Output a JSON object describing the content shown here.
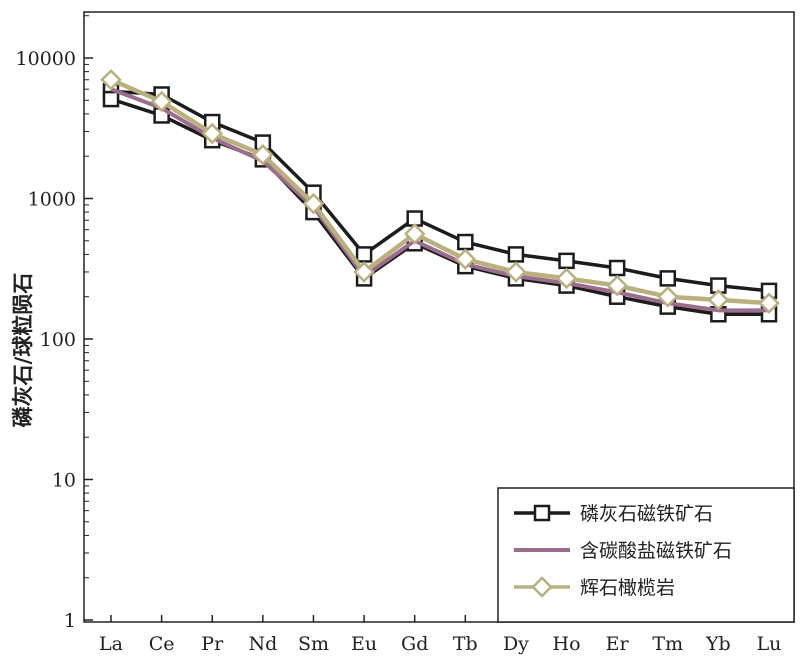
{
  "chart_data": {
    "type": "line",
    "ylabel": "磷灰石/球粒陨石",
    "xlabel": "",
    "yscale": "log",
    "ylim": [
      1,
      20000
    ],
    "yticks": [
      1,
      10,
      100,
      1000,
      10000
    ],
    "ytick_labels": [
      "1",
      "10",
      "100",
      "1000",
      "10000"
    ],
    "categories": [
      "La",
      "Ce",
      "Pr",
      "Nd",
      "Sm",
      "Eu",
      "Gd",
      "Tb",
      "Dy",
      "Ho",
      "Er",
      "Tm",
      "Yb",
      "Lu"
    ],
    "legend_position": "bottom-right",
    "series": [
      {
        "name": "磷灰石磁铁矿石",
        "marker": "square",
        "color": "#1c1c1c",
        "lines": [
          [
            5800,
            5500,
            3500,
            2500,
            1100,
            400,
            720,
            490,
            400,
            360,
            320,
            270,
            240,
            220
          ],
          [
            5100,
            3900,
            2600,
            1900,
            800,
            270,
            480,
            330,
            270,
            240,
            200,
            170,
            150,
            150
          ]
        ]
      },
      {
        "name": "含碳酸盐磁铁矿石",
        "marker": "none",
        "color": "#9b6d8d",
        "lines": [
          [
            6000,
            4400,
            2700,
            1850,
            870,
            280,
            500,
            340,
            280,
            250,
            215,
            180,
            160,
            160
          ]
        ]
      },
      {
        "name": "辉石橄榄岩",
        "marker": "diamond",
        "color": "#b9b07e",
        "lines": [
          [
            7000,
            4900,
            2900,
            2050,
            920,
            300,
            560,
            370,
            300,
            270,
            240,
            200,
            190,
            180
          ]
        ]
      }
    ]
  }
}
